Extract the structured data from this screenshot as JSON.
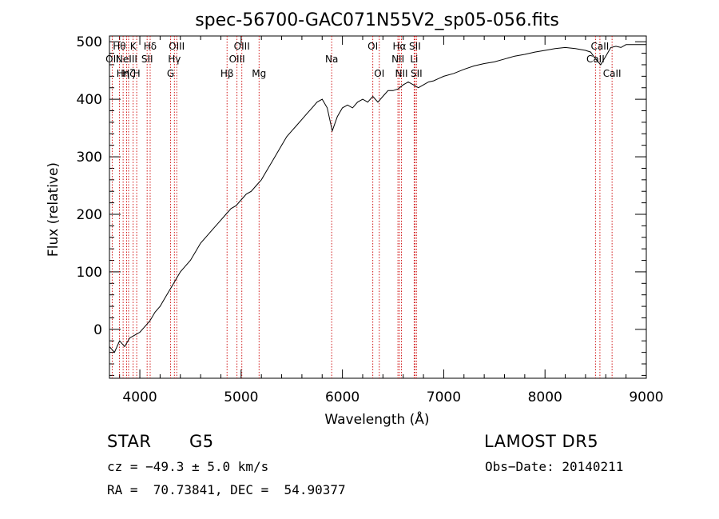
{
  "chart_data": {
    "type": "line",
    "title": "spec-56700-GAC071N55V2_sp05-056.fits",
    "xlabel": "Wavelength (Å)",
    "ylabel": "Flux (relative)",
    "xlim": [
      3700,
      9000
    ],
    "ylim": [
      -85,
      510
    ],
    "xticks": [
      4000,
      5000,
      6000,
      7000,
      8000,
      9000
    ],
    "yticks": [
      0,
      100,
      200,
      300,
      400,
      500
    ],
    "grid": false,
    "line_color": "#000000",
    "marker_color": "#cc0000",
    "series": [
      {
        "x": [
          3700,
          3750,
          3800,
          3850,
          3900,
          3950,
          4000,
          4050,
          4100,
          4150,
          4200,
          4250,
          4300,
          4350,
          4400,
          4450,
          4500,
          4550,
          4600,
          4650,
          4700,
          4750,
          4800,
          4850,
          4900,
          4950,
          5000,
          5050,
          5100,
          5150,
          5200,
          5250,
          5300,
          5350,
          5400,
          5450,
          5500,
          5550,
          5600,
          5650,
          5700,
          5750,
          5800,
          5850,
          5900,
          5950,
          6000,
          6050,
          6100,
          6150,
          6200,
          6250,
          6300,
          6350,
          6400,
          6450,
          6500,
          6550,
          6600,
          6650,
          6700,
          6750,
          6800,
          6850,
          6900,
          6950,
          7000,
          7100,
          7200,
          7300,
          7400,
          7500,
          7600,
          7700,
          7800,
          7900,
          8000,
          8100,
          8200,
          8300,
          8400,
          8450,
          8500,
          8550,
          8600,
          8650,
          8700,
          8750,
          8800,
          8850,
          8900,
          8950,
          9000
        ],
        "y": [
          -30,
          -40,
          -20,
          -30,
          -15,
          -10,
          -5,
          5,
          15,
          30,
          40,
          55,
          70,
          85,
          100,
          110,
          120,
          135,
          150,
          160,
          170,
          180,
          190,
          200,
          210,
          215,
          225,
          235,
          240,
          250,
          260,
          275,
          290,
          305,
          320,
          335,
          345,
          355,
          365,
          375,
          385,
          395,
          400,
          385,
          345,
          370,
          385,
          390,
          385,
          395,
          400,
          395,
          405,
          395,
          405,
          415,
          415,
          418,
          425,
          430,
          425,
          420,
          425,
          430,
          432,
          436,
          440,
          445,
          452,
          458,
          462,
          465,
          470,
          475,
          478,
          482,
          485,
          488,
          490,
          488,
          485,
          482,
          470,
          460,
          475,
          490,
          492,
          490,
          495,
          495,
          495,
          495,
          495
        ]
      }
    ],
    "lines": [
      {
        "wave": 3727,
        "label": "OII",
        "row": 2
      },
      {
        "wave": 3798,
        "label": "Hθ",
        "row": 1
      },
      {
        "wave": 3835,
        "label": "Hη",
        "row": 3
      },
      {
        "wave": 3869,
        "label": "NeIII",
        "row": 2
      },
      {
        "wave": 3889,
        "label": "Hζ",
        "row": 3
      },
      {
        "wave": 3934,
        "label": "K",
        "row": 1
      },
      {
        "wave": 3969,
        "label": "H",
        "row": 3
      },
      {
        "wave": 4072,
        "label": "SII",
        "row": 2
      },
      {
        "wave": 4102,
        "label": "Hδ",
        "row": 1
      },
      {
        "wave": 4304,
        "label": "G",
        "row": 3
      },
      {
        "wave": 4341,
        "label": "Hγ",
        "row": 2
      },
      {
        "wave": 4364,
        "label": "OIII",
        "row": 1
      },
      {
        "wave": 4861,
        "label": "Hβ",
        "row": 3
      },
      {
        "wave": 4959,
        "label": "OIII",
        "row": 2
      },
      {
        "wave": 5007,
        "label": "OIII",
        "row": 1
      },
      {
        "wave": 5177,
        "label": "Mg",
        "row": 3
      },
      {
        "wave": 5894,
        "label": "Na",
        "row": 2
      },
      {
        "wave": 6300,
        "label": "OI",
        "row": 1
      },
      {
        "wave": 6364,
        "label": "OI",
        "row": 3
      },
      {
        "wave": 6548,
        "label": "NII",
        "row": 2
      },
      {
        "wave": 6563,
        "label": "Hα",
        "row": 1
      },
      {
        "wave": 6583,
        "label": "NII",
        "row": 3
      },
      {
        "wave": 6708,
        "label": "Li",
        "row": 2
      },
      {
        "wave": 6716,
        "label": "SII",
        "row": 1
      },
      {
        "wave": 6731,
        "label": "SII",
        "row": 3
      },
      {
        "wave": 8498,
        "label": "CaII",
        "row": 2
      },
      {
        "wave": 8542,
        "label": "CaII",
        "row": 1
      },
      {
        "wave": 8662,
        "label": "CaII",
        "row": 3
      }
    ]
  },
  "info": {
    "object_class": "STAR",
    "subclass": "G5",
    "survey": "LAMOST DR5",
    "cz": "cz = −49.3 ± 5.0 km/s",
    "obs_date": "Obs−Date: 20140211",
    "coords": "RA =  70.73841, DEC =  54.90377"
  }
}
